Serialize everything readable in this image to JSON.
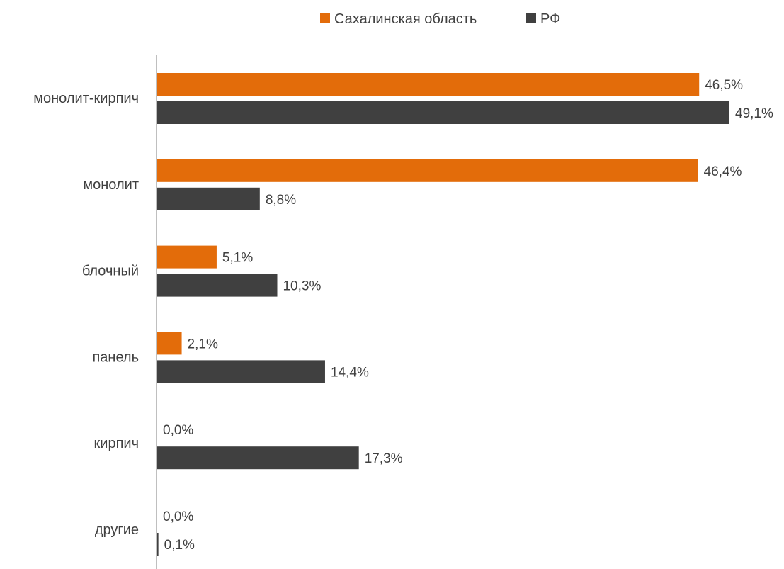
{
  "chart_data": {
    "type": "bar",
    "orientation": "horizontal",
    "title": "",
    "xlabel": "",
    "ylabel": "",
    "xlim": [
      0,
      50
    ],
    "grid": false,
    "legend_position": "top",
    "categories": [
      "монолит-кирпич",
      "монолит",
      "блочный",
      "панель",
      "кирпич",
      "другие"
    ],
    "series": [
      {
        "name": "Сахалинская область",
        "color": "#E36C0A",
        "values": [
          46.5,
          46.4,
          5.1,
          2.1,
          0.0,
          0.0
        ],
        "labels": [
          "46,5%",
          "46,4%",
          "5,1%",
          "2,1%",
          "0,0%",
          "0,0%"
        ]
      },
      {
        "name": "РФ",
        "color": "#404040",
        "values": [
          49.1,
          8.8,
          10.3,
          14.4,
          17.3,
          0.1
        ],
        "labels": [
          "49,1%",
          "8,8%",
          "10,3%",
          "14,4%",
          "17,3%",
          "0,1%"
        ]
      }
    ]
  }
}
